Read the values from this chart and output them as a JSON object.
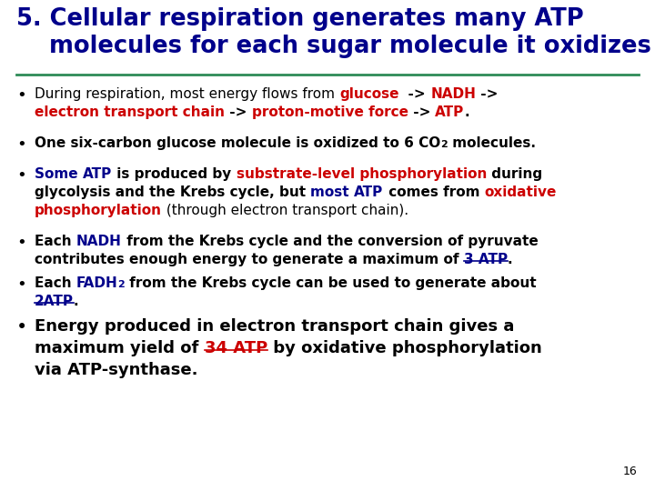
{
  "title_line1": "5. Cellular respiration generates many ATP",
  "title_line2": "    molecules for each sugar molecule it oxidizes",
  "title_color": "#00008B",
  "divider_color": "#2E8B57",
  "bg_color": "#FFFFFF",
  "page_number": "16",
  "BLACK": "#000000",
  "RED": "#CC0000",
  "BLUE": "#00008B"
}
